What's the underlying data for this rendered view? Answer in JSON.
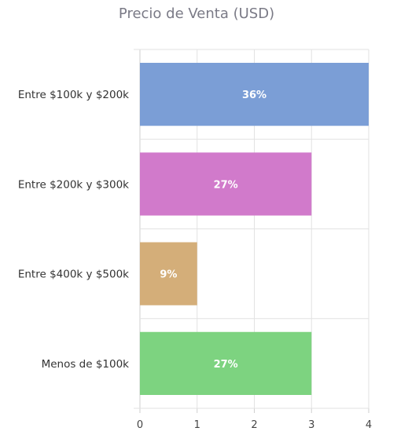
{
  "chart_data": {
    "type": "bar",
    "orientation": "horizontal",
    "title": "Precio de Venta (USD)",
    "xlabel": "",
    "ylabel": "",
    "categories": [
      "Entre $100k y $200k",
      "Entre $200k y $300k",
      "Entre $400k y $500k",
      "Menos de $100k"
    ],
    "values": [
      4,
      3,
      1,
      3
    ],
    "data_labels": [
      "36%",
      "27%",
      "9%",
      "27%"
    ],
    "colors": [
      "#7b9ed6",
      "#d17acb",
      "#d4ae79",
      "#7dd380"
    ],
    "xlim": [
      0,
      4
    ],
    "xticks": [
      0,
      1,
      2,
      3,
      4
    ],
    "grid": true,
    "legend": "none"
  }
}
